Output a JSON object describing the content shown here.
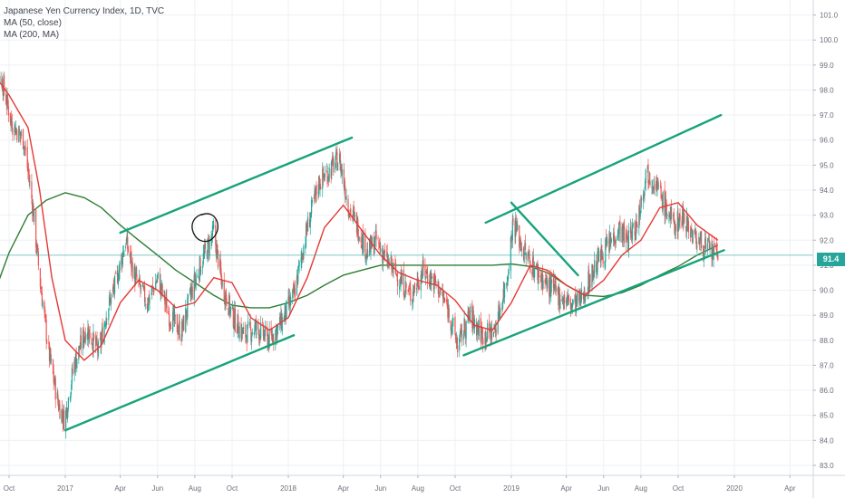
{
  "legend": {
    "title": "Japanese Yen Currency Index, 1D, TVC",
    "ma50": "MA (50, close)",
    "ma200": "MA (200, MA)"
  },
  "colors": {
    "up": "#26a69a",
    "down": "#ef5350",
    "ma50": "#e53935",
    "ma200": "#2e7d32",
    "trendline": "#17a37a",
    "grid": "#eef0f3",
    "axis_text": "#6b6f7a",
    "last_price_line": "#26a69a"
  },
  "price_tag": "91.4",
  "chart_data": {
    "type": "candlestick",
    "title": "Japanese Yen Currency Index, 1D, TVC",
    "x_ticks": [
      "Oct",
      "2017",
      "Apr",
      "Jun",
      "Aug",
      "Oct",
      "2018",
      "Apr",
      "Jun",
      "Aug",
      "Oct",
      "2019",
      "Apr",
      "Jun",
      "Aug",
      "Oct",
      "2020",
      "Apr"
    ],
    "x_tick_dates": [
      "2016-10-01",
      "2017-01-01",
      "2017-04-01",
      "2017-06-01",
      "2017-08-01",
      "2017-10-01",
      "2018-01-01",
      "2018-04-01",
      "2018-06-01",
      "2018-08-01",
      "2018-10-01",
      "2019-01-01",
      "2019-04-01",
      "2019-06-01",
      "2019-08-01",
      "2019-10-01",
      "2020-01-01",
      "2020-04-01"
    ],
    "y_ticks": [
      "101.0",
      "100.0",
      "99.0",
      "98.0",
      "97.0",
      "96.0",
      "95.0",
      "94.0",
      "93.0",
      "92.0",
      "91.0",
      "90.0",
      "89.0",
      "88.0",
      "87.0",
      "86.0",
      "85.0",
      "84.0",
      "83.0"
    ],
    "ylim": [
      82.6,
      101.6
    ],
    "last_price": 91.4,
    "close_path": [
      [
        "2016-09-01",
        99.5
      ],
      [
        "2016-09-20",
        98.3
      ],
      [
        "2016-10-05",
        96.7
      ],
      [
        "2016-10-25",
        96.0
      ],
      [
        "2016-11-08",
        93.5
      ],
      [
        "2016-11-20",
        90.5
      ],
      [
        "2016-12-05",
        87.5
      ],
      [
        "2016-12-20",
        85.5
      ],
      [
        "2016-12-31",
        84.8
      ],
      [
        "2017-01-15",
        87.0
      ],
      [
        "2017-02-05",
        88.5
      ],
      [
        "2017-02-25",
        87.5
      ],
      [
        "2017-03-10",
        89.2
      ],
      [
        "2017-03-25",
        90.3
      ],
      [
        "2017-04-10",
        92.0
      ],
      [
        "2017-04-25",
        90.5
      ],
      [
        "2017-05-15",
        89.5
      ],
      [
        "2017-06-01",
        90.5
      ],
      [
        "2017-06-20",
        89.0
      ],
      [
        "2017-07-10",
        88.3
      ],
      [
        "2017-07-25",
        89.8
      ],
      [
        "2017-08-10",
        91.0
      ],
      [
        "2017-09-01",
        92.3
      ],
      [
        "2017-09-15",
        90.2
      ],
      [
        "2017-10-01",
        89.0
      ],
      [
        "2017-10-20",
        88.2
      ],
      [
        "2017-11-10",
        88.5
      ],
      [
        "2017-12-01",
        88.0
      ],
      [
        "2017-12-20",
        88.7
      ],
      [
        "2018-01-10",
        89.8
      ],
      [
        "2018-02-01",
        92.5
      ],
      [
        "2018-02-20",
        94.3
      ],
      [
        "2018-03-10",
        94.8
      ],
      [
        "2018-03-25",
        95.3
      ],
      [
        "2018-04-10",
        93.3
      ],
      [
        "2018-04-25",
        92.5
      ],
      [
        "2018-05-10",
        91.5
      ],
      [
        "2018-05-25",
        92.0
      ],
      [
        "2018-06-10",
        91.2
      ],
      [
        "2018-07-01",
        90.5
      ],
      [
        "2018-07-20",
        89.8
      ],
      [
        "2018-08-10",
        90.8
      ],
      [
        "2018-09-01",
        90.2
      ],
      [
        "2018-09-20",
        89.2
      ],
      [
        "2018-10-05",
        87.8
      ],
      [
        "2018-10-25",
        89.0
      ],
      [
        "2018-11-15",
        88.2
      ],
      [
        "2018-12-05",
        88.4
      ],
      [
        "2018-12-25",
        90.5
      ],
      [
        "2019-01-04",
        92.8
      ],
      [
        "2019-01-20",
        91.6
      ],
      [
        "2019-02-10",
        90.8
      ],
      [
        "2019-03-01",
        90.2
      ],
      [
        "2019-03-20",
        89.8
      ],
      [
        "2019-04-10",
        89.4
      ],
      [
        "2019-04-25",
        89.6
      ],
      [
        "2019-05-10",
        90.5
      ],
      [
        "2019-05-25",
        91.3
      ],
      [
        "2019-06-10",
        91.8
      ],
      [
        "2019-06-25",
        92.5
      ],
      [
        "2019-07-10",
        92.0
      ],
      [
        "2019-07-25",
        92.6
      ],
      [
        "2019-08-10",
        94.8
      ],
      [
        "2019-08-25",
        94.3
      ],
      [
        "2019-09-10",
        93.3
      ],
      [
        "2019-09-25",
        92.6
      ],
      [
        "2019-10-10",
        93.0
      ],
      [
        "2019-10-25",
        92.2
      ],
      [
        "2019-11-10",
        91.8
      ],
      [
        "2019-11-25",
        91.5
      ],
      [
        "2019-12-05",
        91.4
      ]
    ],
    "ma50": [
      [
        "2016-09-01",
        98.8
      ],
      [
        "2016-10-01",
        97.8
      ],
      [
        "2016-11-01",
        96.5
      ],
      [
        "2016-11-20",
        94.0
      ],
      [
        "2016-12-10",
        90.5
      ],
      [
        "2017-01-01",
        88.0
      ],
      [
        "2017-02-01",
        87.2
      ],
      [
        "2017-03-01",
        87.8
      ],
      [
        "2017-04-01",
        89.5
      ],
      [
        "2017-05-01",
        90.4
      ],
      [
        "2017-06-01",
        90.0
      ],
      [
        "2017-07-01",
        89.3
      ],
      [
        "2017-08-01",
        89.5
      ],
      [
        "2017-09-01",
        90.5
      ],
      [
        "2017-10-01",
        90.3
      ],
      [
        "2017-11-01",
        88.9
      ],
      [
        "2017-12-01",
        88.4
      ],
      [
        "2018-01-01",
        88.9
      ],
      [
        "2018-02-01",
        90.5
      ],
      [
        "2018-03-01",
        92.5
      ],
      [
        "2018-04-01",
        93.4
      ],
      [
        "2018-05-01",
        92.4
      ],
      [
        "2018-06-01",
        91.4
      ],
      [
        "2018-07-01",
        90.7
      ],
      [
        "2018-08-01",
        90.4
      ],
      [
        "2018-09-01",
        90.2
      ],
      [
        "2018-10-01",
        89.6
      ],
      [
        "2018-11-01",
        88.6
      ],
      [
        "2018-12-01",
        88.4
      ],
      [
        "2019-01-01",
        89.5
      ],
      [
        "2019-02-01",
        91.0
      ],
      [
        "2019-03-01",
        90.8
      ],
      [
        "2019-04-01",
        90.2
      ],
      [
        "2019-05-01",
        89.8
      ],
      [
        "2019-06-01",
        90.4
      ],
      [
        "2019-07-01",
        91.4
      ],
      [
        "2019-08-01",
        92.0
      ],
      [
        "2019-09-01",
        93.3
      ],
      [
        "2019-10-01",
        93.5
      ],
      [
        "2019-11-01",
        92.6
      ],
      [
        "2019-12-05",
        92.0
      ]
    ],
    "ma200": [
      [
        "2016-09-01",
        89.5
      ],
      [
        "2016-10-01",
        91.5
      ],
      [
        "2016-11-01",
        93.0
      ],
      [
        "2016-12-01",
        93.6
      ],
      [
        "2017-01-01",
        93.9
      ],
      [
        "2017-02-01",
        93.7
      ],
      [
        "2017-03-01",
        93.3
      ],
      [
        "2017-04-01",
        92.6
      ],
      [
        "2017-05-01",
        92.0
      ],
      [
        "2017-06-01",
        91.4
      ],
      [
        "2017-07-01",
        90.8
      ],
      [
        "2017-08-01",
        90.3
      ],
      [
        "2017-09-01",
        89.8
      ],
      [
        "2017-10-01",
        89.4
      ],
      [
        "2017-11-01",
        89.3
      ],
      [
        "2017-12-01",
        89.3
      ],
      [
        "2018-01-01",
        89.5
      ],
      [
        "2018-02-01",
        89.8
      ],
      [
        "2018-03-01",
        90.2
      ],
      [
        "2018-04-01",
        90.6
      ],
      [
        "2018-05-01",
        90.8
      ],
      [
        "2018-06-01",
        91.0
      ],
      [
        "2018-07-01",
        91.0
      ],
      [
        "2018-08-01",
        91.0
      ],
      [
        "2018-09-01",
        91.0
      ],
      [
        "2018-10-01",
        91.0
      ],
      [
        "2018-11-01",
        91.0
      ],
      [
        "2018-12-01",
        91.0
      ],
      [
        "2019-01-01",
        91.05
      ],
      [
        "2019-02-01",
        90.95
      ],
      [
        "2019-03-01",
        90.7
      ],
      [
        "2019-04-01",
        90.2
      ],
      [
        "2019-05-01",
        89.8
      ],
      [
        "2019-06-01",
        89.75
      ],
      [
        "2019-07-01",
        89.9
      ],
      [
        "2019-08-01",
        90.2
      ],
      [
        "2019-09-01",
        90.6
      ],
      [
        "2019-10-01",
        90.95
      ],
      [
        "2019-11-01",
        91.4
      ],
      [
        "2019-12-05",
        91.8
      ]
    ],
    "trendlines": [
      {
        "name": "channel-2017-upper",
        "from": [
          "2017-04-01",
          92.3
        ],
        "to": [
          "2018-04-15",
          96.1
        ]
      },
      {
        "name": "channel-2017-lower",
        "from": [
          "2017-01-01",
          84.4
        ],
        "to": [
          "2018-01-10",
          88.2
        ]
      },
      {
        "name": "channel-2019-upper",
        "from": [
          "2018-11-20",
          92.7
        ],
        "to": [
          "2019-12-10",
          97.0
        ]
      },
      {
        "name": "channel-2019-lower",
        "from": [
          "2018-10-15",
          87.4
        ],
        "to": [
          "2019-12-15",
          91.6
        ]
      },
      {
        "name": "diagonal-2019",
        "from": [
          "2019-01-01",
          93.5
        ],
        "to": [
          "2019-04-20",
          90.6
        ]
      }
    ],
    "annotation_circle": {
      "date": "2017-08-20",
      "value": 92.5
    },
    "grid": true,
    "legend_position": "top-left"
  }
}
